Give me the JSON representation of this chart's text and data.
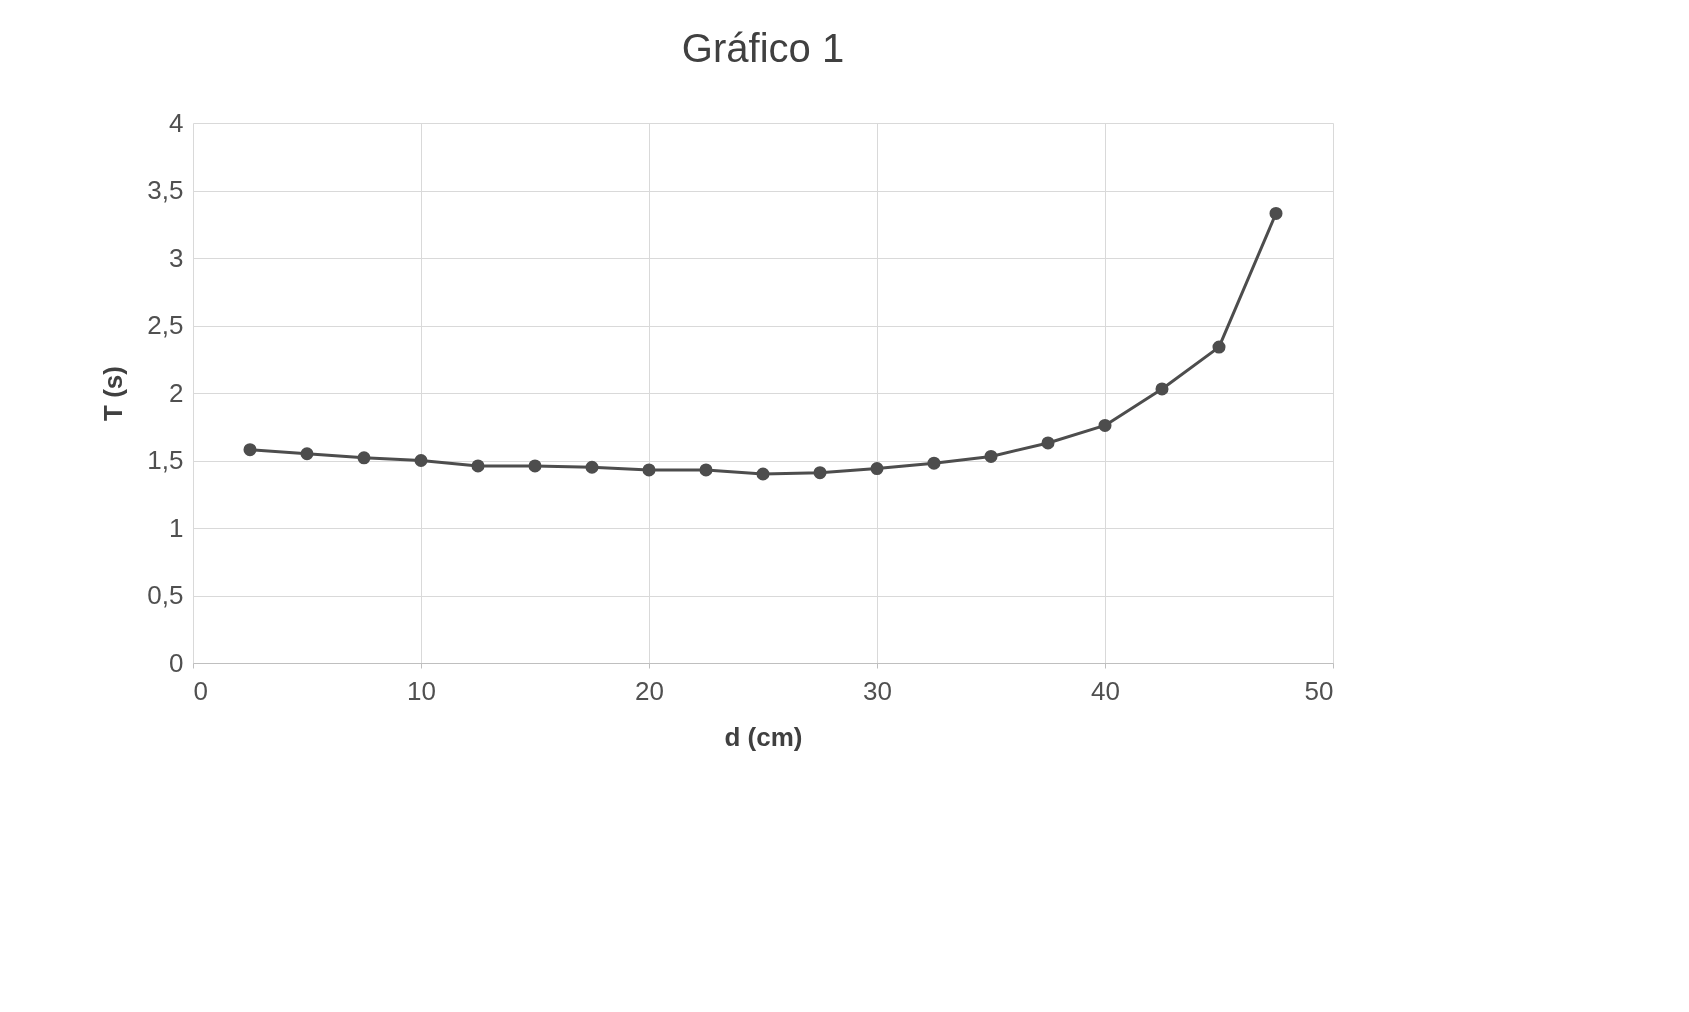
{
  "chart_data": {
    "type": "line",
    "title": "Gráfico 1",
    "xlabel": "d (cm)",
    "ylabel": "T (s)",
    "x": [
      2.5,
      5,
      7.5,
      10,
      12.5,
      15,
      17.5,
      20,
      22.5,
      25,
      27.5,
      30,
      32.5,
      35,
      37.5,
      40,
      42.5,
      45,
      47.5
    ],
    "series": [
      {
        "color": "#4d4d4d",
        "values": [
          1.58,
          1.55,
          1.52,
          1.5,
          1.46,
          1.46,
          1.45,
          1.43,
          1.43,
          1.4,
          1.41,
          1.44,
          1.48,
          1.53,
          1.63,
          1.76,
          2.03,
          2.34,
          3.33
        ]
      }
    ],
    "xlim": [
      0,
      50
    ],
    "xticks": [
      0,
      10,
      20,
      30,
      40,
      50
    ],
    "ylim": [
      0,
      4
    ],
    "yticks": [
      0,
      {
        "value": 0.5,
        "label": "0,5"
      },
      1,
      {
        "value": 1.5,
        "label": "1,5"
      },
      2,
      {
        "value": 2.5,
        "label": "2,5"
      },
      3,
      {
        "value": 3.5,
        "label": "3,5"
      },
      4
    ],
    "grid": true,
    "marker": "circle",
    "line_style": "solid",
    "legend": false
  }
}
